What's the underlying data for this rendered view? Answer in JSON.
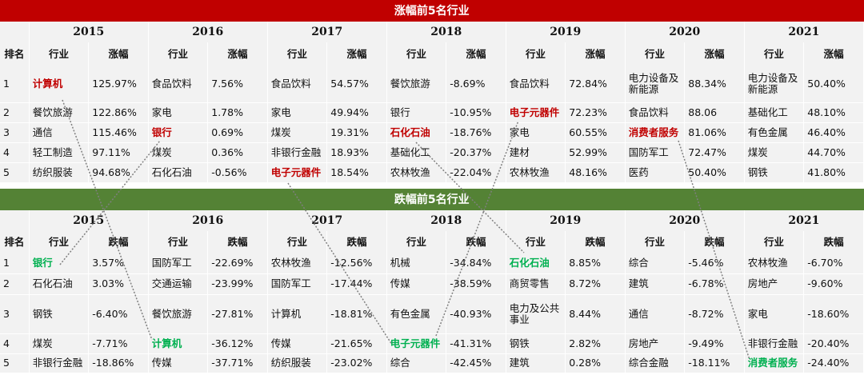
{
  "rise": {
    "banner": "涨幅前5名行业",
    "rank_header": "排名",
    "industry_header": "行业",
    "value_header": "涨幅",
    "years": [
      "2015",
      "2016",
      "2017",
      "2018",
      "2019",
      "2020",
      "2021"
    ],
    "rows": [
      {
        "rank": "1",
        "cells": [
          {
            "name": "计算机",
            "value": "125.97%",
            "hl": "red"
          },
          {
            "name": "食品饮料",
            "value": "7.56%"
          },
          {
            "name": "食品饮料",
            "value": "54.57%"
          },
          {
            "name": "餐饮旅游",
            "value": "-8.69%"
          },
          {
            "name": "食品饮料",
            "value": "72.84%"
          },
          {
            "name": "电力设备及新能源",
            "value": "88.34%"
          },
          {
            "name": "电力设备及新能源",
            "value": "50.40%"
          }
        ]
      },
      {
        "rank": "2",
        "cells": [
          {
            "name": "餐饮旅游",
            "value": "122.86%"
          },
          {
            "name": "家电",
            "value": "1.78%"
          },
          {
            "name": "家电",
            "value": "49.94%"
          },
          {
            "name": "银行",
            "value": "-10.95%"
          },
          {
            "name": "电子元器件",
            "value": "72.23%",
            "hl": "red"
          },
          {
            "name": "食品饮料",
            "value": "88.06"
          },
          {
            "name": "基础化工",
            "value": "48.10%"
          }
        ]
      },
      {
        "rank": "3",
        "cells": [
          {
            "name": "通信",
            "value": "115.46%"
          },
          {
            "name": "银行",
            "value": "0.69%",
            "hl": "red"
          },
          {
            "name": "煤炭",
            "value": "19.31%"
          },
          {
            "name": "石化石油",
            "value": "-18.76%",
            "hl": "red"
          },
          {
            "name": "家电",
            "value": "60.55%"
          },
          {
            "name": "消费者服务",
            "value": "81.06%",
            "hl": "red"
          },
          {
            "name": "有色金属",
            "value": "46.40%"
          }
        ]
      },
      {
        "rank": "4",
        "cells": [
          {
            "name": "轻工制造",
            "value": "97.11%"
          },
          {
            "name": "煤炭",
            "value": "0.36%"
          },
          {
            "name": "非银行金融",
            "value": "18.93%"
          },
          {
            "name": "基础化工",
            "value": "-20.37%"
          },
          {
            "name": "建材",
            "value": "52.99%"
          },
          {
            "name": "国防军工",
            "value": "72.47%"
          },
          {
            "name": "煤炭",
            "value": "44.70%"
          }
        ]
      },
      {
        "rank": "5",
        "cells": [
          {
            "name": "纺织服装",
            "value": "94.68%"
          },
          {
            "name": "石化石油",
            "value": "-0.56%"
          },
          {
            "name": "电子元器件",
            "value": "18.54%",
            "hl": "red"
          },
          {
            "name": "农林牧渔",
            "value": "-22.04%"
          },
          {
            "name": "农林牧渔",
            "value": "48.16%"
          },
          {
            "name": "医药",
            "value": "50.40%"
          },
          {
            "name": "钢铁",
            "value": "41.80%"
          }
        ]
      }
    ]
  },
  "fall": {
    "banner": "跌幅前5名行业",
    "rank_header": "排名",
    "industry_header": "行业",
    "value_header": "跌幅",
    "years": [
      "2015",
      "2016",
      "2017",
      "2018",
      "2019",
      "2020",
      "2021"
    ],
    "rows": [
      {
        "rank": "1",
        "cells": [
          {
            "name": "银行",
            "value": "3.57%",
            "hl": "green"
          },
          {
            "name": "国防军工",
            "value": "-22.69%"
          },
          {
            "name": "农林牧渔",
            "value": "-12.56%"
          },
          {
            "name": "机械",
            "value": "-34.84%"
          },
          {
            "name": "石化石油",
            "value": "8.85%",
            "hl": "green"
          },
          {
            "name": "综合",
            "value": "-5.46%"
          },
          {
            "name": "农林牧渔",
            "value": "-6.70%"
          }
        ]
      },
      {
        "rank": "2",
        "cells": [
          {
            "name": "石化石油",
            "value": "3.03%"
          },
          {
            "name": "交通运输",
            "value": "-23.99%"
          },
          {
            "name": "国防军工",
            "value": "-17.44%"
          },
          {
            "name": "传媒",
            "value": "-38.59%"
          },
          {
            "name": "商贸零售",
            "value": "8.72%"
          },
          {
            "name": "建筑",
            "value": "-6.78%"
          },
          {
            "name": "房地产",
            "value": "-9.60%"
          }
        ]
      },
      {
        "rank": "3",
        "cells": [
          {
            "name": "钢铁",
            "value": "-6.40%"
          },
          {
            "name": "餐饮旅游",
            "value": "-27.81%"
          },
          {
            "name": "计算机",
            "value": "-18.81%"
          },
          {
            "name": "有色金属",
            "value": "-40.93%"
          },
          {
            "name": "电力及公共事业",
            "value": "8.44%"
          },
          {
            "name": "通信",
            "value": "-8.72%"
          },
          {
            "name": "家电",
            "value": "-18.60%"
          }
        ]
      },
      {
        "rank": "4",
        "cells": [
          {
            "name": "煤炭",
            "value": "-7.71%"
          },
          {
            "name": "计算机",
            "value": "-36.12%",
            "hl": "green"
          },
          {
            "name": "传媒",
            "value": "-21.65%"
          },
          {
            "name": "电子元器件",
            "value": "-41.31%",
            "hl": "green"
          },
          {
            "name": "钢铁",
            "value": "2.82%"
          },
          {
            "name": "房地产",
            "value": "-9.49%"
          },
          {
            "name": "非银行金融",
            "value": "-20.40%"
          }
        ]
      },
      {
        "rank": "5",
        "cells": [
          {
            "name": "非银行金融",
            "value": "-18.86%"
          },
          {
            "name": "传媒",
            "value": "-37.71%"
          },
          {
            "name": "纺织服装",
            "value": "-23.02%"
          },
          {
            "name": "综合",
            "value": "-42.45%"
          },
          {
            "name": "建筑",
            "value": "0.28%"
          },
          {
            "name": "综合金融",
            "value": "-18.11%"
          },
          {
            "name": "消费者服务",
            "value": "-24.40%",
            "hl": "green"
          }
        ]
      }
    ]
  }
}
